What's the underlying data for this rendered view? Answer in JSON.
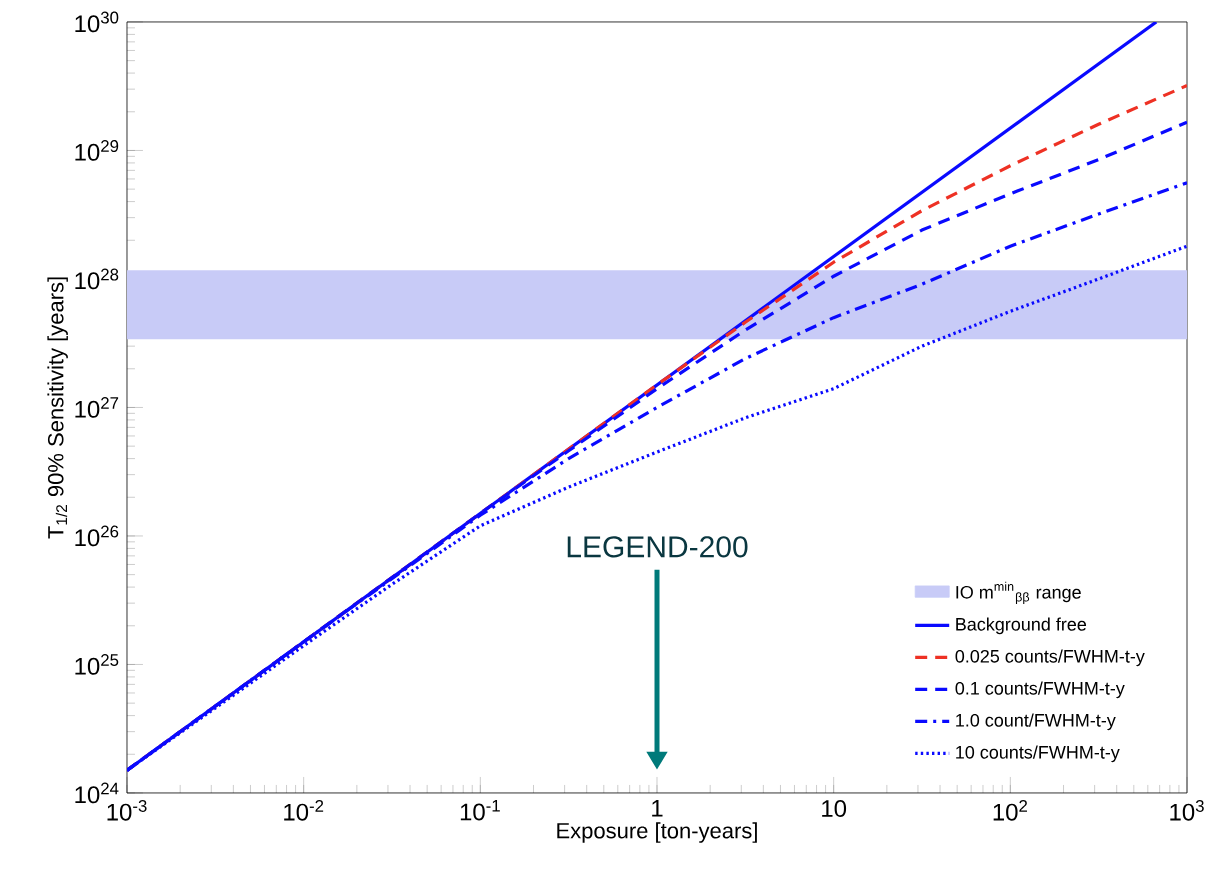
{
  "chart_data": {
    "type": "line",
    "xlabel": "Exposure [ton-years]",
    "ylabel": "T$_{1/2}$ 90% Sensitivity [years]",
    "log": "xy",
    "xlim": [
      0.001,
      1000
    ],
    "ylim": [
      1e+24,
      1e+30
    ],
    "xticks": [
      {
        "value": 0.001,
        "label": "10$^{-3}$"
      },
      {
        "value": 0.01,
        "label": "10$^{-2}$"
      },
      {
        "value": 0.1,
        "label": "10$^{-1}$"
      },
      1,
      10,
      {
        "value": 100,
        "label": "10$^{2}$"
      },
      {
        "value": 1000,
        "label": "10$^{3}$"
      }
    ],
    "yticks": [
      {
        "value": 1e+24,
        "label": "10$^{24}$"
      },
      {
        "value": 1e+25,
        "label": "10$^{25}$"
      },
      {
        "value": 1e+26,
        "label": "10$^{26}$"
      },
      {
        "value": 1e+27,
        "label": "10$^{27}$"
      },
      {
        "value": 1e+28,
        "label": "10$^{28}$"
      },
      {
        "value": 1e+29,
        "label": "10$^{29}$"
      },
      {
        "value": 1e+30,
        "label": "10$^{30}$"
      }
    ],
    "bands": [
      {
        "axis": "y",
        "from": 3.4e+27,
        "to": 1.17e+28,
        "label": "IO m$^{min}$$_{ββ}$ range",
        "color": "#c8cbf7"
      }
    ],
    "series": [
      {
        "name": "Background free",
        "color": "#0a0aff",
        "line_style": "solid",
        "x": [
          0.001,
          670
        ],
        "values": [
          1.5e+24,
          1e+30
        ]
      },
      {
        "name": "0.025 counts/FWHM-t-y",
        "color": "#ee3124",
        "line_style": "dashed",
        "x": [
          0.001,
          1,
          3.16,
          10,
          31.6,
          100,
          316,
          1000
        ],
        "values": [
          1.5e+24,
          1.5e+27,
          4.6e+27,
          1.35e+28,
          3.4e+28,
          7.6e+28,
          1.6e+29,
          3.2e+29
        ]
      },
      {
        "name": "0.1 counts/FWHM-t-y",
        "color": "#0a0aff",
        "line_style": "dashed",
        "x": [
          0.001,
          0.01,
          0.1,
          0.316,
          1,
          3.16,
          10,
          31.6,
          100,
          316,
          1000
        ],
        "values": [
          1.5e+24,
          1.5e+25,
          1.5e+26,
          4.6e+26,
          1.4e+27,
          4e+27,
          1.05e+28,
          2.4e+28,
          4.6e+28,
          8.5e+28,
          1.66e+29
        ]
      },
      {
        "name": "1.0 count/FWHM-t-y",
        "color": "#0a0aff",
        "line_style": "dashdot",
        "x": [
          0.001,
          0.01,
          0.1,
          0.316,
          1,
          3.16,
          10,
          31.6,
          100,
          316,
          1000
        ],
        "values": [
          1.5e+24,
          1.5e+25,
          1.45e+26,
          4e+26,
          1e+27,
          2.4e+27,
          5e+27,
          9.1e+27,
          1.8e+28,
          3.2e+28,
          5.6e+28
        ]
      },
      {
        "name": "10 counts/FWHM-t-y",
        "color": "#0a0aff",
        "line_style": "dotted",
        "x": [
          0.001,
          0.01,
          0.0316,
          0.1,
          0.316,
          1,
          3.16,
          10,
          31.6,
          100,
          316,
          1000
        ],
        "values": [
          1.5e+24,
          1.4e+25,
          4.2e+25,
          1.2e+26,
          2.4e+26,
          4.5e+26,
          8.3e+26,
          1.4e+27,
          3e+27,
          5.6e+27,
          1e+28,
          1.8e+28
        ]
      }
    ],
    "annotations": [
      "LEGEND-200"
    ],
    "legend": "bottom right",
    "grid": false
  }
}
